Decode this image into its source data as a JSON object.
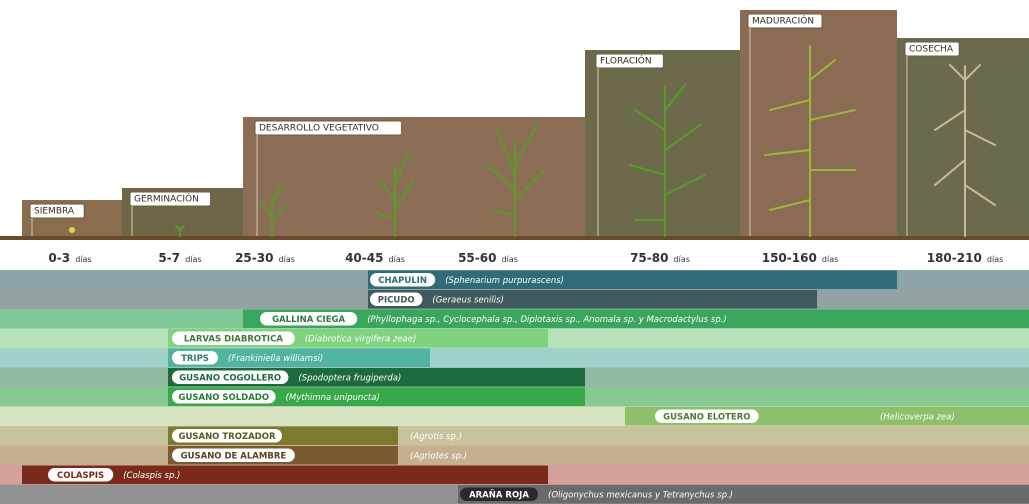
{
  "stages": [
    {
      "label": "SIEMBRA",
      "range": "0-3",
      "unit": "días"
    },
    {
      "label": "GERMINACIÓN",
      "range": "5-7",
      "unit": "días"
    },
    {
      "label": "DESARROLLO VEGETATIVO",
      "range": "25-30",
      "unit": "días"
    },
    {
      "range": "40-45",
      "unit": "días"
    },
    {
      "range": "55-60",
      "unit": "días"
    },
    {
      "label": "FLORACIÓN",
      "range": "75-80",
      "unit": "días"
    },
    {
      "label": "MADURACIÓN",
      "range": "150-160",
      "unit": "días"
    },
    {
      "label": "COSECHA",
      "range": "180-210",
      "unit": "días"
    }
  ],
  "pests": [
    {
      "name": "CHAPULIN",
      "scientific": "(Sphenarium purpurascens)"
    },
    {
      "name": "PICUDO",
      "scientific": "(Geraeus senilis)"
    },
    {
      "name": "GALLINA CIEGA",
      "scientific": "(Phyllophaga sp., Cyclocephala sp., Diplotaxis sp., Anomala sp. y Macrodactylus sp.)"
    },
    {
      "name": "LARVAS DIABROTICA",
      "scientific": "(Diabrotica virgifera zeae)"
    },
    {
      "name": "TRIPS",
      "scientific": "(Frankiniella williamsi)"
    },
    {
      "name": "GUSANO COGOLLERO",
      "scientific": "(Spodoptera frugiperda)"
    },
    {
      "name": "GUSANO SOLDADO",
      "scientific": "(Mythimna unipuncta)"
    },
    {
      "name": "GUSANO ELOTERO",
      "scientific": "(Helicoverpa zea)"
    },
    {
      "name": "GUSANO TROZADOR",
      "scientific": "(Agrotis sp.)"
    },
    {
      "name": "GUSANO DE ALAMBRE",
      "scientific": "(Agriotes sp.)"
    },
    {
      "name": "COLASPIS",
      "scientific": "(Colaspis sp.)"
    },
    {
      "name": "ARAÑA ROJA",
      "scientific": "(Oligonychus mexicanus y Tetranychus sp.)"
    }
  ]
}
